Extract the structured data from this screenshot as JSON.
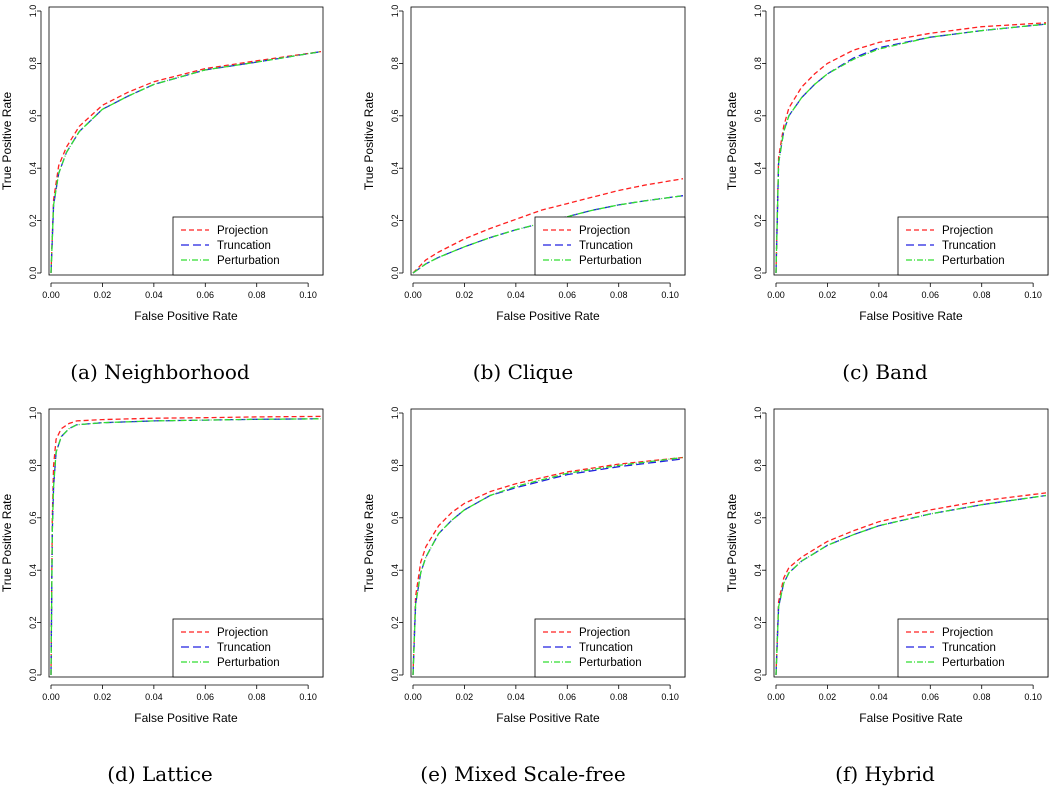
{
  "figure": {
    "legend": [
      "Projection",
      "Truncation",
      "Perturbation"
    ],
    "colors": {
      "Projection": "#ff2020",
      "Truncation": "#2020e0",
      "Perturbation": "#30dd30"
    }
  },
  "chart_data": [
    {
      "type": "line",
      "caption": "(a) Neighborhood",
      "xlabel": "False Positive Rate",
      "ylabel": "True Positive Rate",
      "xlim": [
        0,
        0.105
      ],
      "ylim": [
        0,
        1.0
      ],
      "xticks": [
        "0.00",
        "0.02",
        "0.04",
        "0.06",
        "0.08",
        "0.10"
      ],
      "yticks": [
        "0.0",
        "0.2",
        "0.4",
        "0.6",
        "0.8",
        "1.0"
      ],
      "legend_position": "bottom-right",
      "series": [
        {
          "name": "Projection",
          "x": [
            0,
            0.001,
            0.003,
            0.006,
            0.011,
            0.02,
            0.03,
            0.04,
            0.06,
            0.08,
            0.105
          ],
          "y": [
            0,
            0.28,
            0.41,
            0.48,
            0.56,
            0.64,
            0.69,
            0.73,
            0.78,
            0.81,
            0.845
          ]
        },
        {
          "name": "Truncation",
          "x": [
            0,
            0.001,
            0.003,
            0.006,
            0.011,
            0.02,
            0.03,
            0.04,
            0.06,
            0.08,
            0.105
          ],
          "y": [
            0,
            0.26,
            0.38,
            0.46,
            0.54,
            0.625,
            0.675,
            0.72,
            0.775,
            0.805,
            0.845
          ]
        },
        {
          "name": "Perturbation",
          "x": [
            0,
            0.001,
            0.003,
            0.006,
            0.011,
            0.02,
            0.03,
            0.04,
            0.06,
            0.08,
            0.105
          ],
          "y": [
            0,
            0.26,
            0.38,
            0.46,
            0.54,
            0.625,
            0.675,
            0.72,
            0.775,
            0.805,
            0.845
          ]
        }
      ]
    },
    {
      "type": "line",
      "caption": "(b) Clique",
      "xlabel": "False Positive Rate",
      "ylabel": "True Positive Rate",
      "xlim": [
        0,
        0.105
      ],
      "ylim": [
        0,
        1.0
      ],
      "xticks": [
        "0.00",
        "0.02",
        "0.04",
        "0.06",
        "0.08",
        "0.10"
      ],
      "yticks": [
        "0.0",
        "0.2",
        "0.4",
        "0.6",
        "0.8",
        "1.0"
      ],
      "legend_position": "bottom-right",
      "series": [
        {
          "name": "Projection",
          "x": [
            0,
            0.005,
            0.01,
            0.02,
            0.03,
            0.04,
            0.05,
            0.06,
            0.07,
            0.08,
            0.09,
            0.105
          ],
          "y": [
            0,
            0.05,
            0.08,
            0.13,
            0.17,
            0.205,
            0.24,
            0.265,
            0.29,
            0.315,
            0.335,
            0.36
          ]
        },
        {
          "name": "Truncation",
          "x": [
            0,
            0.005,
            0.01,
            0.02,
            0.03,
            0.04,
            0.05,
            0.06,
            0.07,
            0.08,
            0.09,
            0.105
          ],
          "y": [
            0,
            0.035,
            0.06,
            0.1,
            0.135,
            0.165,
            0.19,
            0.215,
            0.24,
            0.26,
            0.275,
            0.295
          ]
        },
        {
          "name": "Perturbation",
          "x": [
            0,
            0.005,
            0.01,
            0.02,
            0.03,
            0.04,
            0.05,
            0.06,
            0.07,
            0.08,
            0.09,
            0.105
          ],
          "y": [
            0,
            0.035,
            0.06,
            0.1,
            0.135,
            0.165,
            0.19,
            0.215,
            0.24,
            0.26,
            0.275,
            0.295
          ]
        }
      ]
    },
    {
      "type": "line",
      "caption": "(c) Band",
      "xlabel": "False Positive Rate",
      "ylabel": "True Positive Rate",
      "xlim": [
        0,
        0.105
      ],
      "ylim": [
        0,
        1.0
      ],
      "xticks": [
        "0.00",
        "0.02",
        "0.04",
        "0.06",
        "0.08",
        "0.10"
      ],
      "yticks": [
        "0.0",
        "0.2",
        "0.4",
        "0.6",
        "0.8",
        "1.0"
      ],
      "legend_position": "bottom-right",
      "series": [
        {
          "name": "Projection",
          "x": [
            0,
            0.001,
            0.003,
            0.005,
            0.01,
            0.015,
            0.02,
            0.03,
            0.04,
            0.06,
            0.08,
            0.105
          ],
          "y": [
            0,
            0.44,
            0.56,
            0.63,
            0.71,
            0.76,
            0.8,
            0.85,
            0.88,
            0.915,
            0.94,
            0.955
          ]
        },
        {
          "name": "Truncation",
          "x": [
            0,
            0.001,
            0.003,
            0.005,
            0.01,
            0.015,
            0.02,
            0.03,
            0.04,
            0.06,
            0.08,
            0.105
          ],
          "y": [
            0,
            0.42,
            0.54,
            0.6,
            0.67,
            0.72,
            0.76,
            0.82,
            0.86,
            0.9,
            0.925,
            0.95
          ]
        },
        {
          "name": "Perturbation",
          "x": [
            0,
            0.001,
            0.003,
            0.005,
            0.01,
            0.015,
            0.02,
            0.03,
            0.04,
            0.06,
            0.08,
            0.105
          ],
          "y": [
            0,
            0.42,
            0.54,
            0.6,
            0.67,
            0.72,
            0.76,
            0.815,
            0.855,
            0.9,
            0.925,
            0.95
          ]
        }
      ]
    },
    {
      "type": "line",
      "caption": "(d) Lattice",
      "xlabel": "False Positive Rate",
      "ylabel": "True Positive Rate",
      "xlim": [
        0,
        0.105
      ],
      "ylim": [
        0,
        1.0
      ],
      "xticks": [
        "0.00",
        "0.02",
        "0.04",
        "0.06",
        "0.08",
        "0.10"
      ],
      "yticks": [
        "0.0",
        "0.2",
        "0.4",
        "0.6",
        "0.8",
        "1.0"
      ],
      "legend_position": "bottom-right",
      "series": [
        {
          "name": "Projection",
          "x": [
            0,
            0.0005,
            0.001,
            0.002,
            0.004,
            0.007,
            0.01,
            0.02,
            0.04,
            0.06,
            0.08,
            0.105
          ],
          "y": [
            0,
            0.6,
            0.8,
            0.9,
            0.94,
            0.96,
            0.97,
            0.975,
            0.98,
            0.982,
            0.985,
            0.987
          ]
        },
        {
          "name": "Truncation",
          "x": [
            0,
            0.0005,
            0.001,
            0.002,
            0.004,
            0.007,
            0.01,
            0.02,
            0.04,
            0.06,
            0.08,
            0.105
          ],
          "y": [
            0,
            0.55,
            0.72,
            0.85,
            0.91,
            0.94,
            0.955,
            0.963,
            0.97,
            0.973,
            0.976,
            0.978
          ]
        },
        {
          "name": "Perturbation",
          "x": [
            0,
            0.0005,
            0.001,
            0.002,
            0.004,
            0.007,
            0.01,
            0.02,
            0.04,
            0.06,
            0.08,
            0.105
          ],
          "y": [
            0,
            0.55,
            0.72,
            0.85,
            0.91,
            0.94,
            0.955,
            0.963,
            0.97,
            0.973,
            0.976,
            0.978
          ]
        }
      ]
    },
    {
      "type": "line",
      "caption": "(e) Mixed Scale-free",
      "xlabel": "False Positive Rate",
      "ylabel": "True Positive Rate",
      "xlim": [
        0,
        0.105
      ],
      "ylim": [
        0,
        1.0
      ],
      "xticks": [
        "0.00",
        "0.02",
        "0.04",
        "0.06",
        "0.08",
        "0.10"
      ],
      "yticks": [
        "0.0",
        "0.2",
        "0.4",
        "0.6",
        "0.8",
        "1.0"
      ],
      "legend_position": "bottom-right",
      "series": [
        {
          "name": "Projection",
          "x": [
            0,
            0.001,
            0.003,
            0.005,
            0.01,
            0.015,
            0.02,
            0.03,
            0.04,
            0.06,
            0.08,
            0.105
          ],
          "y": [
            0,
            0.3,
            0.43,
            0.49,
            0.57,
            0.62,
            0.655,
            0.7,
            0.73,
            0.775,
            0.805,
            0.83
          ]
        },
        {
          "name": "Truncation",
          "x": [
            0,
            0.001,
            0.003,
            0.005,
            0.01,
            0.015,
            0.02,
            0.03,
            0.04,
            0.06,
            0.08,
            0.105
          ],
          "y": [
            0,
            0.27,
            0.39,
            0.45,
            0.54,
            0.59,
            0.63,
            0.685,
            0.715,
            0.765,
            0.795,
            0.825
          ]
        },
        {
          "name": "Perturbation",
          "x": [
            0,
            0.001,
            0.003,
            0.005,
            0.01,
            0.015,
            0.02,
            0.03,
            0.04,
            0.06,
            0.08,
            0.105
          ],
          "y": [
            0,
            0.27,
            0.39,
            0.45,
            0.54,
            0.59,
            0.63,
            0.685,
            0.72,
            0.77,
            0.8,
            0.83
          ]
        }
      ]
    },
    {
      "type": "line",
      "caption": "(f) Hybrid",
      "xlabel": "False Positive Rate",
      "ylabel": "True Positive Rate",
      "xlim": [
        0,
        0.105
      ],
      "ylim": [
        0,
        1.0
      ],
      "xticks": [
        "0.00",
        "0.02",
        "0.04",
        "0.06",
        "0.08",
        "0.10"
      ],
      "yticks": [
        "0.0",
        "0.2",
        "0.4",
        "0.6",
        "0.8",
        "1.0"
      ],
      "legend_position": "bottom-right",
      "series": [
        {
          "name": "Projection",
          "x": [
            0,
            0.001,
            0.003,
            0.005,
            0.01,
            0.015,
            0.02,
            0.03,
            0.04,
            0.06,
            0.08,
            0.105
          ],
          "y": [
            0,
            0.28,
            0.37,
            0.41,
            0.45,
            0.48,
            0.51,
            0.55,
            0.585,
            0.63,
            0.665,
            0.695
          ]
        },
        {
          "name": "Truncation",
          "x": [
            0,
            0.001,
            0.003,
            0.005,
            0.01,
            0.015,
            0.02,
            0.03,
            0.04,
            0.06,
            0.08,
            0.105
          ],
          "y": [
            0,
            0.26,
            0.35,
            0.39,
            0.435,
            0.465,
            0.495,
            0.535,
            0.57,
            0.615,
            0.65,
            0.685
          ]
        },
        {
          "name": "Perturbation",
          "x": [
            0,
            0.001,
            0.003,
            0.005,
            0.01,
            0.015,
            0.02,
            0.03,
            0.04,
            0.06,
            0.08,
            0.105
          ],
          "y": [
            0,
            0.26,
            0.35,
            0.39,
            0.435,
            0.465,
            0.495,
            0.535,
            0.57,
            0.615,
            0.65,
            0.685
          ]
        }
      ]
    }
  ]
}
